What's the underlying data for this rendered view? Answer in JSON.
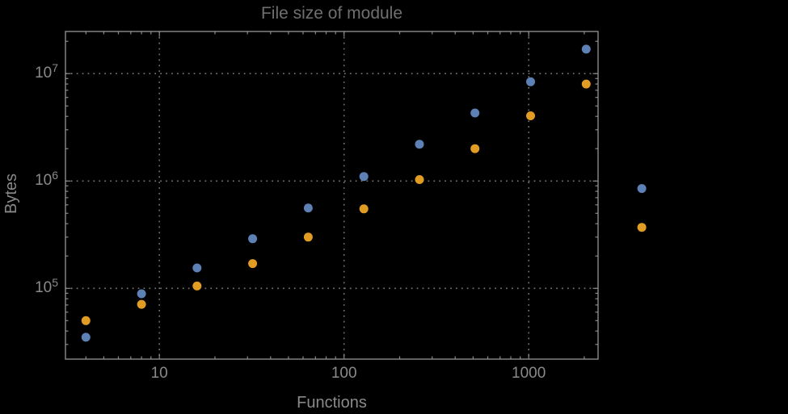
{
  "window": {
    "background": "#000000"
  },
  "chart_data": {
    "type": "scatter",
    "title": "File size of module",
    "xlabel": "Functions",
    "ylabel": "Bytes",
    "x_scale": "log",
    "y_scale": "log",
    "x_range": [
      3.1,
      2375
    ],
    "y_range": [
      21900,
      24700000
    ],
    "grid": "dotted lines at decade ticks, both axes",
    "legend": "none",
    "x_ticks": [
      {
        "value": 10,
        "label": "10"
      },
      {
        "value": 100,
        "label": "100"
      },
      {
        "value": 1000,
        "label": "1000"
      }
    ],
    "y_ticks": [
      {
        "value": 100000,
        "base": "10",
        "exp": "5"
      },
      {
        "value": 1000000,
        "base": "10",
        "exp": "6"
      },
      {
        "value": 10000000,
        "base": "10",
        "exp": "7"
      }
    ],
    "x": [
      4,
      8,
      16,
      32,
      64,
      128,
      256,
      512,
      1024,
      2048,
      4096
    ],
    "series": [
      {
        "name": "blue-series",
        "color": "#5E81B5",
        "values": [
          35000,
          89000,
          155000,
          290000,
          560000,
          1100000,
          2200000,
          4300000,
          8400000,
          16900000,
          850000
        ]
      },
      {
        "name": "orange-series",
        "color": "#E19C24",
        "values": [
          50000,
          71000,
          105000,
          170000,
          300000,
          550000,
          1030000,
          2000000,
          4050000,
          8000000,
          370000
        ]
      }
    ],
    "styles": {
      "frame_color": "#8b8b8b",
      "grid_color": "#777777",
      "tick_label_color": "#8a8a8a",
      "axis_label_color": "#8a8a8a",
      "title_color": "#6f6f6f",
      "marker_diameter_px": 11
    }
  }
}
